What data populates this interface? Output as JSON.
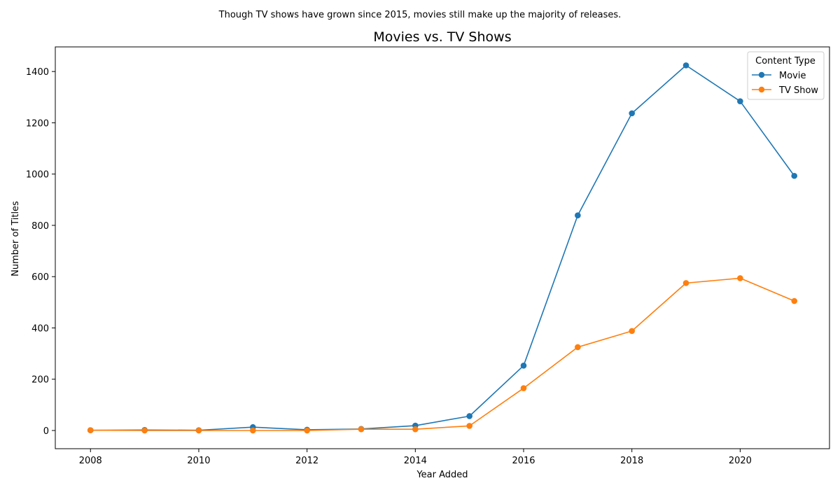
{
  "chart_data": {
    "type": "line",
    "title": "Movies vs. TV Shows",
    "subtitle": "Though TV shows have grown since 2015, movies still make up the majority of releases.",
    "xlabel": "Year Added",
    "ylabel": "Number of Titles",
    "x": [
      2008,
      2009,
      2010,
      2011,
      2012,
      2013,
      2014,
      2015,
      2016,
      2017,
      2018,
      2019,
      2020,
      2021
    ],
    "xlim": [
      2007.35,
      2021.65
    ],
    "ylim": [
      -71,
      1496
    ],
    "x_ticks": [
      2008,
      2010,
      2012,
      2014,
      2016,
      2018,
      2020
    ],
    "y_ticks": [
      0,
      200,
      400,
      600,
      800,
      1000,
      1200,
      1400
    ],
    "grid": false,
    "legend": {
      "title": "Content Type",
      "placement": "top-right"
    },
    "series": [
      {
        "name": "Movie",
        "color": "#1f77b4",
        "values": [
          1,
          2,
          1,
          13,
          3,
          6,
          19,
          56,
          253,
          839,
          1237,
          1424,
          1284,
          993
        ]
      },
      {
        "name": "TV Show",
        "color": "#ff7f0e",
        "values": [
          1,
          0,
          0,
          0,
          0,
          5,
          5,
          18,
          165,
          325,
          388,
          575,
          594,
          505
        ]
      }
    ]
  }
}
